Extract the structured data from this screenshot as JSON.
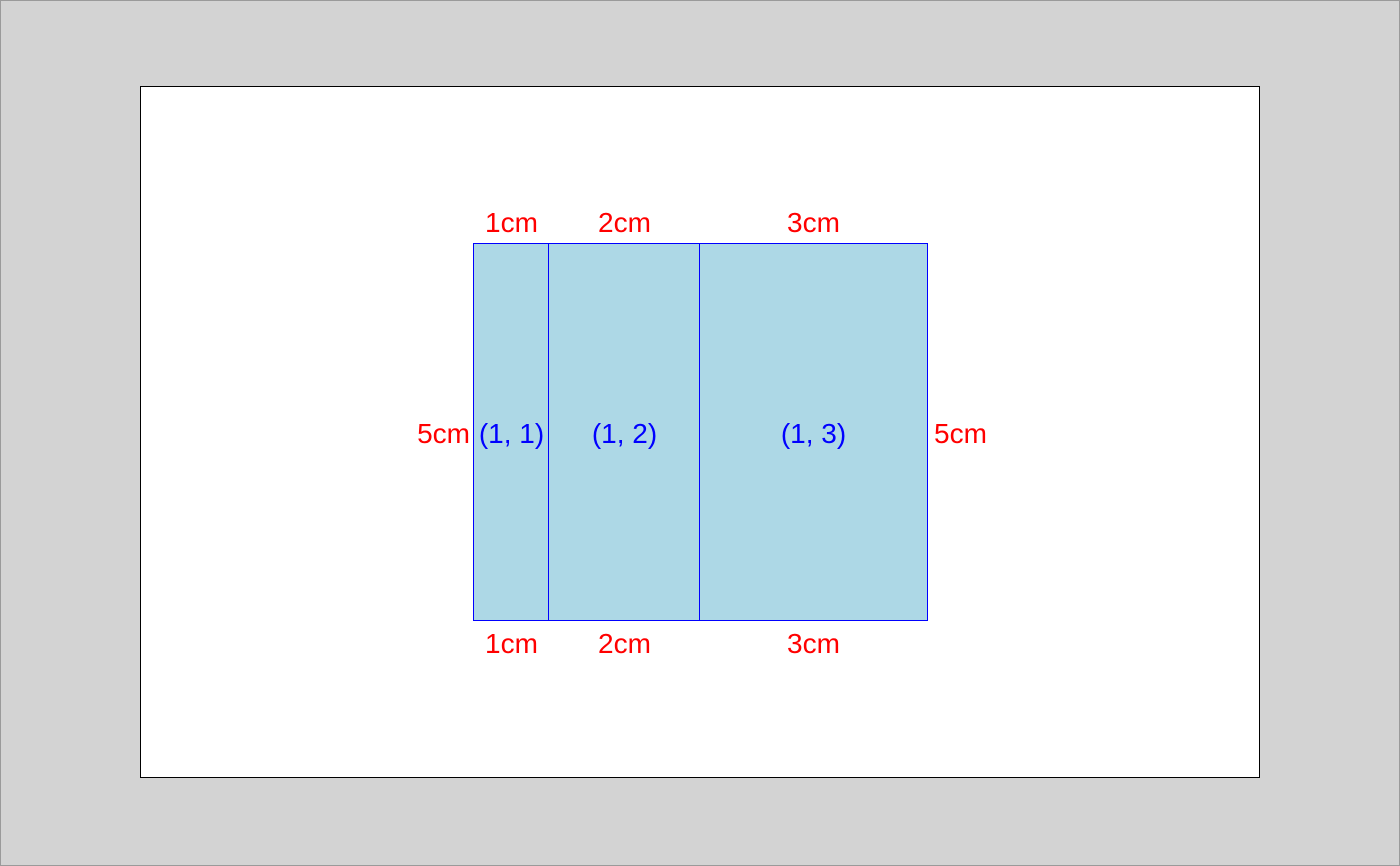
{
  "layout": {
    "rows": 1,
    "columns": 3,
    "fill_color": "#add8e6",
    "border_color": "#0000ff",
    "dimension_color": "#ff0000",
    "page_background": "#ffffff",
    "surround_background": "#d3d3d3"
  },
  "cells": [
    {
      "label": "(1, 1)",
      "width": "1cm"
    },
    {
      "label": "(1, 2)",
      "width": "2cm"
    },
    {
      "label": "(1, 3)",
      "width": "3cm"
    }
  ],
  "height_label_left": "5cm",
  "height_label_right": "5cm"
}
